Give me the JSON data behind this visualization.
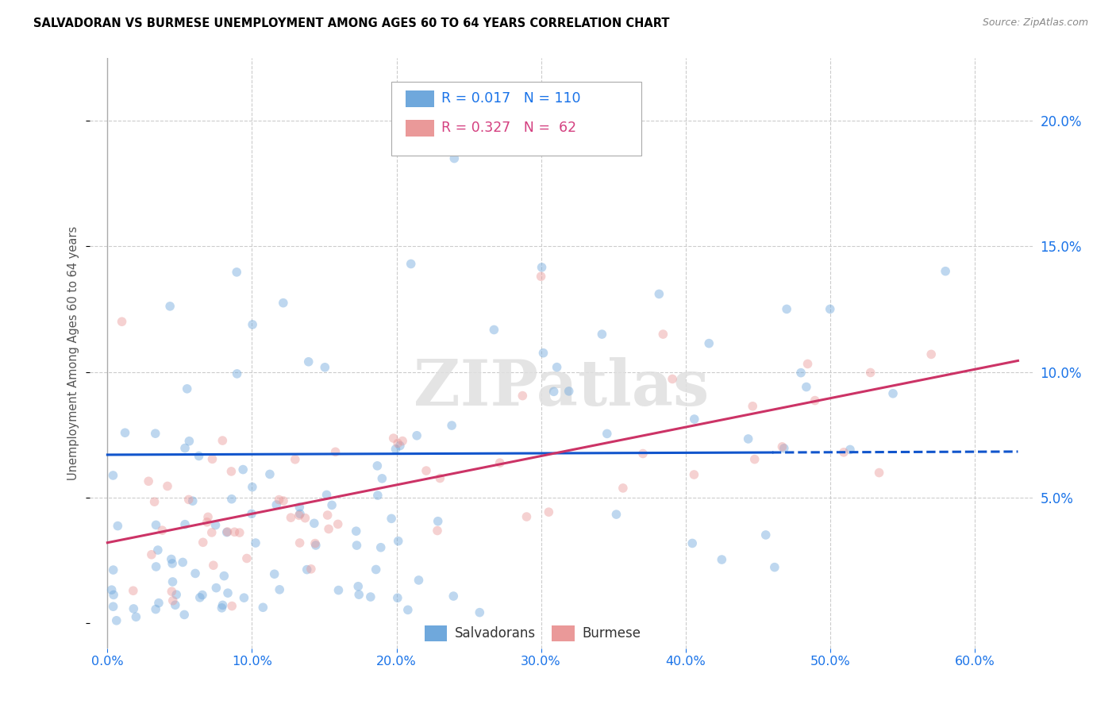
{
  "title": "SALVADORAN VS BURMESE UNEMPLOYMENT AMONG AGES 60 TO 64 YEARS CORRELATION CHART",
  "source": "Source: ZipAtlas.com",
  "xlabel_ticks": [
    "0.0%",
    "10.0%",
    "20.0%",
    "30.0%",
    "40.0%",
    "50.0%",
    "60.0%"
  ],
  "xlabel_vals": [
    0.0,
    0.1,
    0.2,
    0.3,
    0.4,
    0.5,
    0.6
  ],
  "ylabel": "Unemployment Among Ages 60 to 64 years",
  "ylabel_ticks": [
    "5.0%",
    "10.0%",
    "15.0%",
    "20.0%"
  ],
  "ylabel_vals": [
    0.05,
    0.1,
    0.15,
    0.2
  ],
  "ylim": [
    -0.01,
    0.225
  ],
  "xlim": [
    -0.012,
    0.64
  ],
  "salvadoran_color": "#6fa8dc",
  "burmese_color": "#ea9999",
  "salvadoran_line_color": "#1155cc",
  "burmese_line_color": "#cc3366",
  "legend_label_salvadoran": "Salvadorans",
  "legend_label_burmese": "Burmese",
  "R_salvadoran": 0.017,
  "N_salvadoran": 110,
  "R_burmese": 0.327,
  "N_burmese": 62,
  "watermark": "ZIPatlas",
  "background_color": "#ffffff",
  "grid_color": "#cccccc",
  "title_color": "#000000",
  "source_color": "#888888",
  "axis_label_color": "#1a73e8",
  "marker_size": 70,
  "marker_alpha": 0.45,
  "sal_line_solid_end": 0.46,
  "sal_intercept": 0.067,
  "sal_slope": 0.002,
  "bur_intercept": 0.032,
  "bur_slope": 0.115
}
